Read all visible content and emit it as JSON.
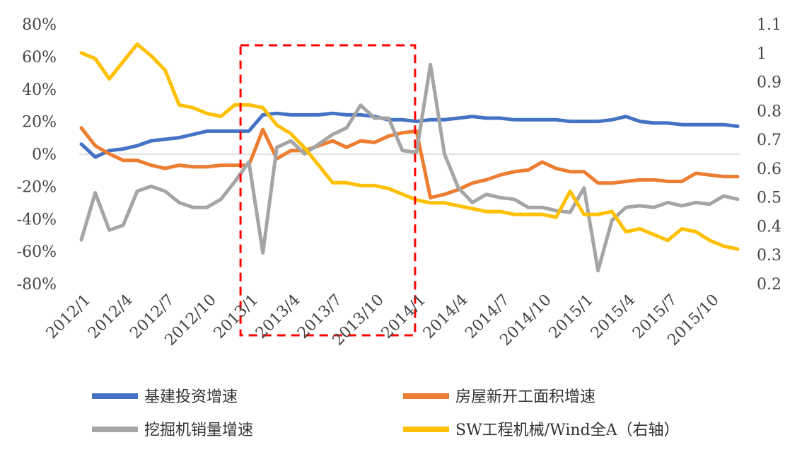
{
  "chart_data": {
    "type": "line",
    "title": "",
    "xlabel": "",
    "ylabel": "",
    "x": [
      "2012/1",
      "2012/2",
      "2012/3",
      "2012/4",
      "2012/5",
      "2012/6",
      "2012/7",
      "2012/8",
      "2012/9",
      "2012/10",
      "2012/11",
      "2012/12",
      "2013/1",
      "2013/2",
      "2013/3",
      "2013/4",
      "2013/5",
      "2013/6",
      "2013/7",
      "2013/8",
      "2013/9",
      "2013/10",
      "2013/11",
      "2013/12",
      "2014/1",
      "2014/2",
      "2014/3",
      "2014/4",
      "2014/5",
      "2014/6",
      "2014/7",
      "2014/8",
      "2014/9",
      "2014/10",
      "2014/11",
      "2014/12",
      "2015/1",
      "2015/2",
      "2015/3",
      "2015/4",
      "2015/5",
      "2015/6",
      "2015/7",
      "2015/8",
      "2015/9",
      "2015/10",
      "2015/11",
      "2015/12"
    ],
    "x_tick_labels": [
      "2012/1",
      "2012/4",
      "2012/7",
      "2012/10",
      "2013/1",
      "2013/4",
      "2013/7",
      "2013/10",
      "2014/1",
      "2014/4",
      "2014/7",
      "2014/10",
      "2015/1",
      "2015/4",
      "2015/7",
      "2015/10"
    ],
    "x_tick_every": 3,
    "y_left": {
      "ticks": [
        "80%",
        "60%",
        "40%",
        "20%",
        "0%",
        "-20%",
        "-40%",
        "-60%",
        "-80%"
      ],
      "range": [
        -80,
        80
      ]
    },
    "y_right": {
      "ticks": [
        "1.1",
        "1",
        "0.9",
        "0.8",
        "0.7",
        "0.6",
        "0.5",
        "0.4",
        "0.3",
        "0.2"
      ],
      "range": [
        0.2,
        1.1
      ]
    },
    "series": [
      {
        "name": "基建投资增速",
        "axis": "left",
        "color": "#4472C4",
        "values": [
          6,
          -2,
          2,
          3,
          5,
          8,
          9,
          10,
          12,
          14,
          14,
          14,
          14,
          24,
          25,
          24,
          24,
          24,
          25,
          24,
          24,
          23,
          21,
          21,
          20,
          21,
          21,
          22,
          23,
          22,
          22,
          21,
          21,
          21,
          21,
          20,
          20,
          20,
          21,
          23,
          20,
          19,
          19,
          18,
          18,
          18,
          18,
          17
        ]
      },
      {
        "name": "房屋新开工面积增速",
        "axis": "left",
        "color": "#ED7D31",
        "values": [
          16,
          5,
          0,
          -4,
          -4,
          -7,
          -9,
          -7,
          -8,
          -8,
          -7,
          -7,
          -7,
          15,
          -3,
          2,
          2,
          5,
          8,
          4,
          8,
          7,
          11,
          13,
          14,
          -27,
          -25,
          -22,
          -18,
          -16,
          -13,
          -11,
          -10,
          -5,
          -9,
          -11,
          -11,
          -18,
          -18,
          -17,
          -16,
          -16,
          -17,
          -17,
          -12,
          -13,
          -14,
          -14
        ]
      },
      {
        "name": "挖掘机销量增速",
        "axis": "left",
        "color": "#A5A5A5",
        "values": [
          -53,
          -24,
          -47,
          -44,
          -23,
          -20,
          -23,
          -30,
          -33,
          -33,
          -28,
          -17,
          -5,
          -61,
          4,
          8,
          0,
          6,
          12,
          16,
          30,
          22,
          22,
          2,
          1,
          55,
          0,
          -21,
          -30,
          -25,
          -27,
          -28,
          -33,
          -33,
          -35,
          -36,
          -21,
          -72,
          -41,
          -33,
          -32,
          -33,
          -30,
          -32,
          -30,
          -31,
          -26,
          -28
        ]
      },
      {
        "name": "SW工程机械/Wind全A（右轴）",
        "axis": "right",
        "color": "#FFC000",
        "values": [
          1.0,
          0.98,
          0.91,
          0.97,
          1.03,
          0.99,
          0.94,
          0.82,
          0.81,
          0.79,
          0.78,
          0.82,
          0.82,
          0.81,
          0.75,
          0.72,
          0.67,
          0.61,
          0.55,
          0.55,
          0.54,
          0.54,
          0.53,
          0.51,
          0.49,
          0.48,
          0.48,
          0.47,
          0.46,
          0.45,
          0.45,
          0.44,
          0.44,
          0.44,
          0.43,
          0.52,
          0.44,
          0.44,
          0.45,
          0.38,
          0.39,
          0.37,
          0.35,
          0.39,
          0.38,
          0.35,
          0.33,
          0.32
        ]
      }
    ],
    "annotations": [
      {
        "type": "dashed-rectangle",
        "color": "#FF0000",
        "from_x": "2013/1",
        "to_x": "2013/12"
      }
    ],
    "grid": false,
    "legend": "bottom"
  }
}
